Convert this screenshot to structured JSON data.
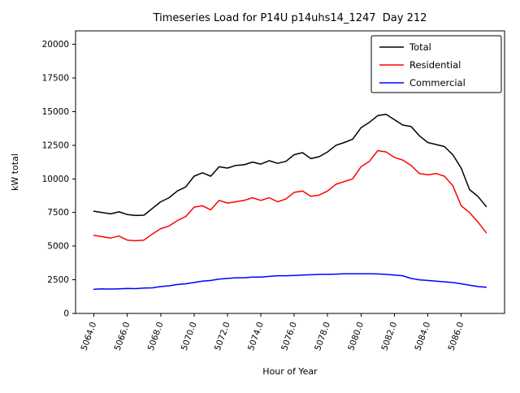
{
  "figure": {
    "title": "Timeseries Load for P14U p14uhs14_1247  Day 212",
    "xlabel": "Hour of Year",
    "ylabel": "kW total"
  },
  "chart_data": {
    "type": "line",
    "title": "Timeseries Load for P14U p14uhs14_1247  Day 212",
    "xlabel": "Hour of Year",
    "ylabel": "kW total",
    "grid": false,
    "legend_position": "upper right",
    "xlim": [
      5062.9,
      5088.6
    ],
    "ylim": [
      0,
      21000
    ],
    "xticks": [
      5064,
      5066,
      5068,
      5070,
      5072,
      5074,
      5076,
      5078,
      5080,
      5082,
      5084,
      5086
    ],
    "yticks": [
      0,
      2500,
      5000,
      7500,
      10000,
      12500,
      15000,
      17500,
      20000
    ],
    "x": [
      5064.0,
      5064.5,
      5065.0,
      5065.5,
      5066.0,
      5066.5,
      5067.0,
      5067.5,
      5068.0,
      5068.5,
      5069.0,
      5069.5,
      5070.0,
      5070.5,
      5071.0,
      5071.5,
      5072.0,
      5072.5,
      5073.0,
      5073.5,
      5074.0,
      5074.5,
      5075.0,
      5075.5,
      5076.0,
      5076.5,
      5077.0,
      5077.5,
      5078.0,
      5078.5,
      5079.0,
      5079.5,
      5080.0,
      5080.5,
      5081.0,
      5081.5,
      5082.0,
      5082.5,
      5083.0,
      5083.5,
      5084.0,
      5084.5,
      5085.0,
      5085.5,
      5086.0,
      5086.5,
      5087.0,
      5087.5
    ],
    "series": [
      {
        "name": "Total",
        "color": "#000000",
        "values": [
          7600,
          7500,
          7400,
          7550,
          7350,
          7280,
          7300,
          7800,
          8300,
          8600,
          9100,
          9400,
          10200,
          10450,
          10200,
          10900,
          10800,
          11000,
          11050,
          11250,
          11100,
          11350,
          11150,
          11300,
          11800,
          11950,
          11500,
          11650,
          12000,
          12500,
          12700,
          12950,
          13800,
          14200,
          14700,
          14800,
          14400,
          14000,
          13900,
          13200,
          12700,
          12550,
          12400,
          11800,
          10800,
          9200,
          8700,
          7950
        ]
      },
      {
        "name": "Residential",
        "color": "#ff0000",
        "values": [
          5800,
          5700,
          5600,
          5750,
          5450,
          5400,
          5450,
          5900,
          6300,
          6500,
          6900,
          7200,
          7900,
          8000,
          7700,
          8400,
          8200,
          8300,
          8400,
          8600,
          8400,
          8600,
          8300,
          8500,
          9000,
          9100,
          8700,
          8800,
          9100,
          9600,
          9800,
          10000,
          10900,
          11300,
          12100,
          12000,
          11600,
          11400,
          11000,
          10400,
          10300,
          10400,
          10200,
          9500,
          8000,
          7500,
          6800,
          6000
        ]
      },
      {
        "name": "Commercial",
        "color": "#0000ff",
        "values": [
          1800,
          1820,
          1810,
          1830,
          1850,
          1840,
          1880,
          1900,
          2000,
          2050,
          2150,
          2200,
          2300,
          2400,
          2450,
          2550,
          2600,
          2650,
          2650,
          2700,
          2700,
          2750,
          2800,
          2800,
          2820,
          2850,
          2870,
          2900,
          2900,
          2920,
          2950,
          2950,
          2950,
          2950,
          2930,
          2900,
          2850,
          2800,
          2600,
          2500,
          2450,
          2400,
          2350,
          2300,
          2200,
          2100,
          2000,
          1950
        ]
      }
    ]
  }
}
